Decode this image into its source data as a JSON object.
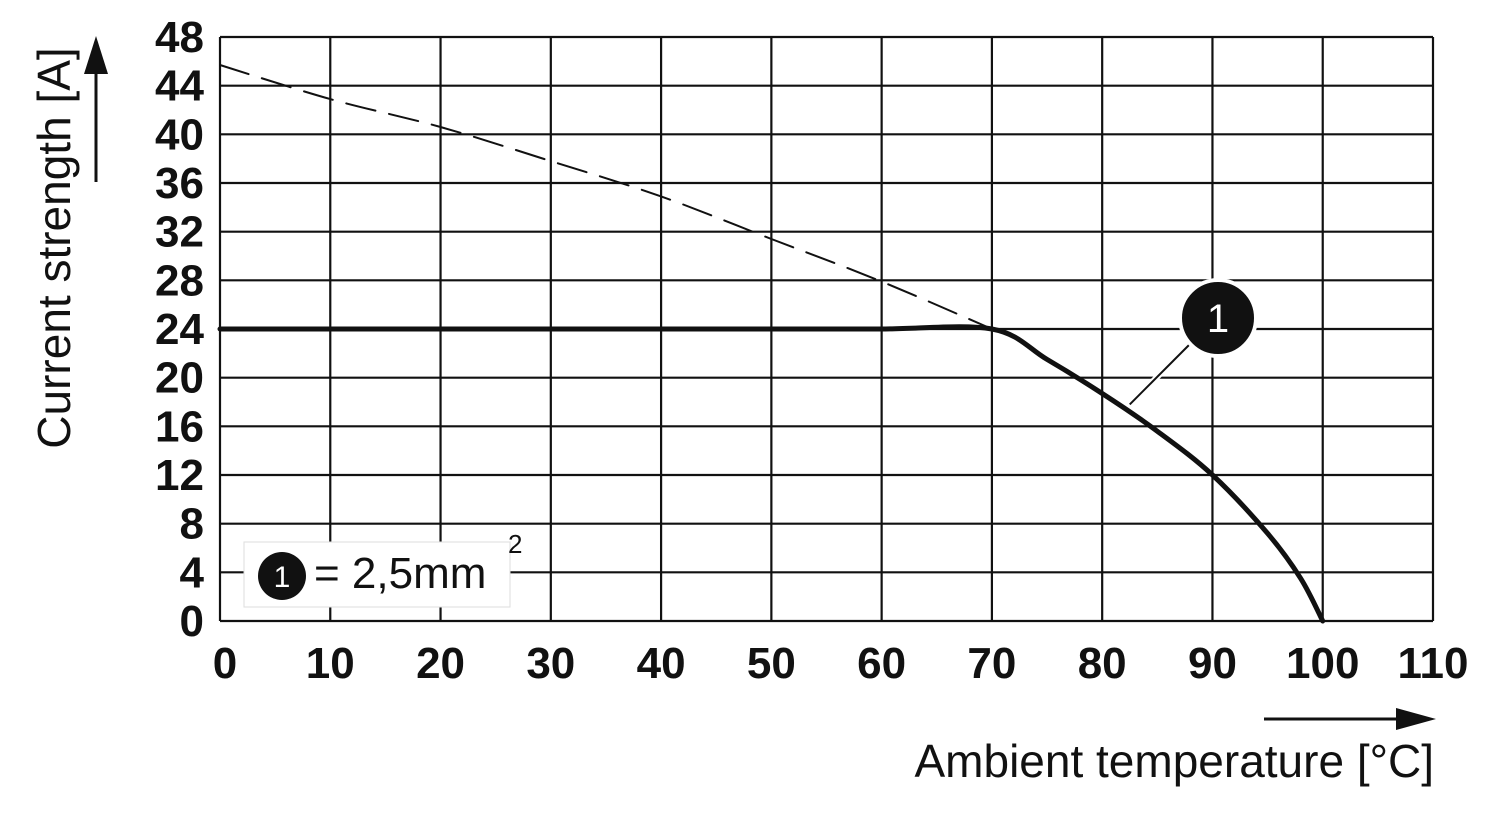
{
  "chart_data": {
    "type": "line",
    "xlabel": "Ambient temperature [°C]",
    "ylabel": "Current strength [A]",
    "xlim": [
      0,
      110
    ],
    "ylim": [
      0,
      48
    ],
    "x_ticks": [
      0,
      10,
      20,
      30,
      40,
      50,
      60,
      70,
      80,
      90,
      100,
      110
    ],
    "y_ticks": [
      0,
      4,
      8,
      12,
      16,
      20,
      24,
      28,
      32,
      36,
      40,
      44,
      48
    ],
    "grid": true,
    "series": [
      {
        "style": "solid-thick",
        "x": [
          0,
          10,
          20,
          30,
          40,
          50,
          60,
          70,
          75,
          80,
          85,
          90,
          95,
          98,
          100
        ],
        "y": [
          24,
          24,
          24,
          24,
          24,
          24,
          24,
          24,
          21.5,
          18.7,
          15.6,
          12,
          7.2,
          3.5,
          0
        ]
      },
      {
        "style": "dashed",
        "x": [
          0,
          10,
          20,
          30,
          40,
          50,
          60,
          70
        ],
        "y": [
          45.7,
          42.9,
          40.6,
          37.8,
          34.9,
          31.4,
          27.9,
          24
        ]
      }
    ],
    "annotation": {
      "label": "1",
      "points_to": {
        "x": 82.5,
        "y": 17.8
      }
    },
    "legend": {
      "placement": "bottom-left",
      "marker": "1",
      "text": "= 2,5mm",
      "superscript": "2"
    }
  }
}
